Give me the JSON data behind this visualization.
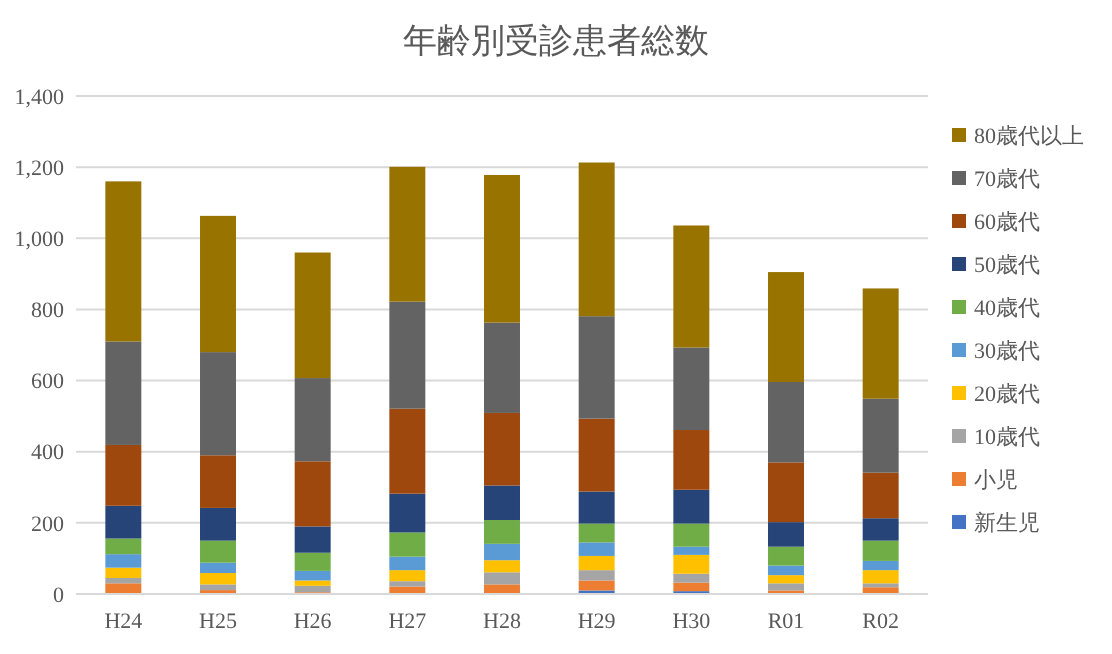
{
  "chart_data": {
    "type": "bar",
    "title": "年齢別受診患者総数",
    "stacked": true,
    "categories": [
      "H24",
      "H25",
      "H26",
      "H27",
      "H28",
      "H29",
      "H30",
      "R01",
      "R02"
    ],
    "series": [
      {
        "name": "新生児",
        "color": "#4472c4",
        "values": [
          0,
          0,
          0,
          0,
          0,
          10,
          8,
          0,
          0
        ]
      },
      {
        "name": "小児",
        "color": "#ed7d31",
        "values": [
          30,
          11,
          5,
          21,
          27,
          28,
          24,
          10,
          19
        ]
      },
      {
        "name": "10歳代",
        "color": "#a5a5a5",
        "values": [
          15,
          16,
          18,
          15,
          34,
          29,
          25,
          20,
          11
        ]
      },
      {
        "name": "20歳代",
        "color": "#ffc000",
        "values": [
          29,
          32,
          15,
          31,
          34,
          40,
          53,
          23,
          37
        ]
      },
      {
        "name": "30歳代",
        "color": "#5b9bd5",
        "values": [
          38,
          29,
          27,
          38,
          46,
          38,
          23,
          27,
          26
        ]
      },
      {
        "name": "40歳代",
        "color": "#70ad47",
        "values": [
          44,
          62,
          51,
          68,
          67,
          53,
          65,
          53,
          57
        ]
      },
      {
        "name": "50歳代",
        "color": "#264478",
        "values": [
          92,
          92,
          74,
          109,
          97,
          90,
          95,
          69,
          63
        ]
      },
      {
        "name": "60歳代",
        "color": "#9e480e",
        "values": [
          171,
          148,
          183,
          239,
          204,
          205,
          168,
          168,
          128
        ]
      },
      {
        "name": "70歳代",
        "color": "#636363",
        "values": [
          291,
          290,
          234,
          301,
          254,
          288,
          232,
          226,
          208
        ]
      },
      {
        "name": "80歳代以上",
        "color": "#997300",
        "values": [
          450,
          383,
          353,
          379,
          415,
          432,
          343,
          309,
          310
        ]
      }
    ],
    "ylim": [
      0,
      1400
    ],
    "yticks": [
      {
        "value": 0,
        "label": "0"
      },
      {
        "value": 200,
        "label": "200"
      },
      {
        "value": 400,
        "label": "400"
      },
      {
        "value": 600,
        "label": "600"
      },
      {
        "value": 800,
        "label": "800"
      },
      {
        "value": 1000,
        "label": "1,000"
      },
      {
        "value": 1200,
        "label": "1,200"
      },
      {
        "value": 1400,
        "label": "1,400"
      }
    ],
    "grid": "y",
    "legend": "right"
  }
}
